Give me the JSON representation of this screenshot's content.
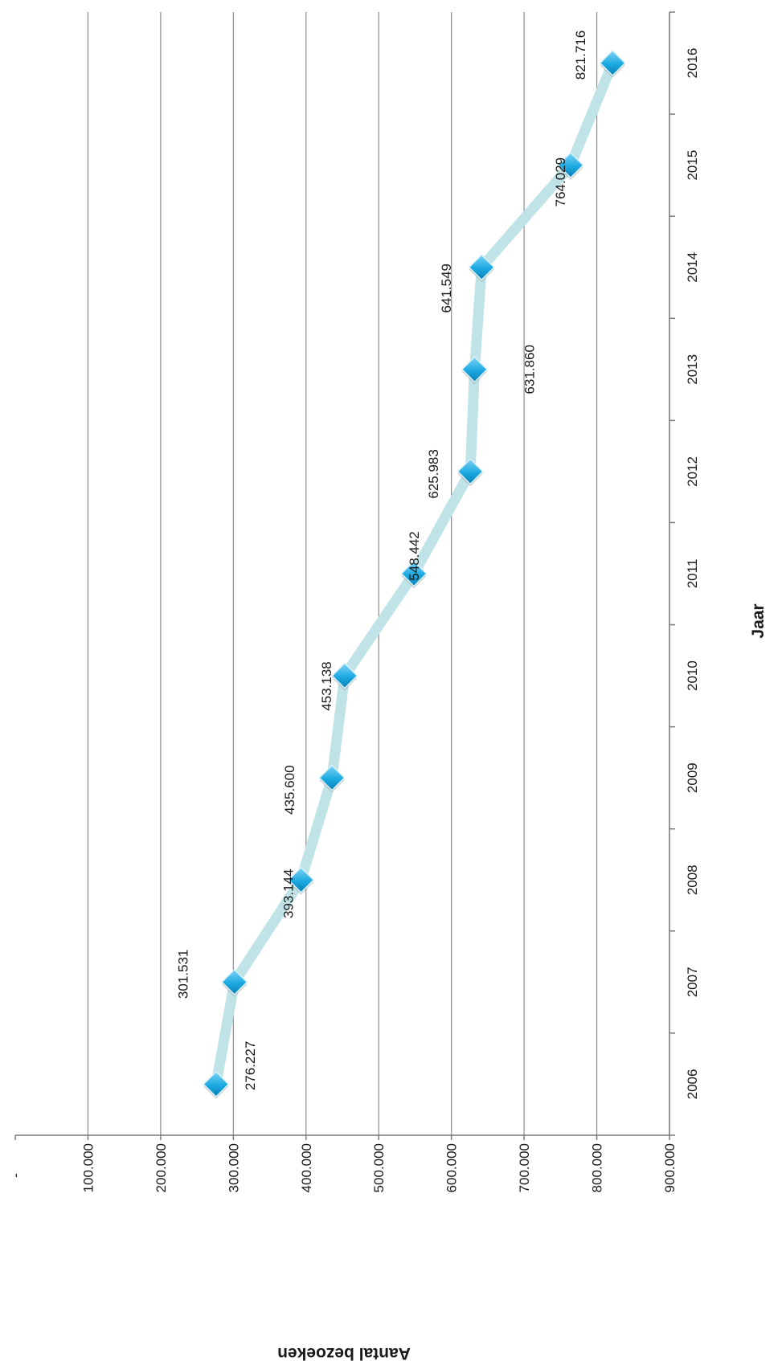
{
  "chart_data": {
    "type": "line",
    "title": "",
    "xlabel": "Jaar",
    "ylabel": "Aantal bezoeken",
    "categories": [
      "2006",
      "2007",
      "2008",
      "2009",
      "2010",
      "2011",
      "2012",
      "2013",
      "2014",
      "2015",
      "2016"
    ],
    "series": [
      {
        "values": [
          276227,
          301531,
          393144,
          435600,
          453138,
          548442,
          625983,
          631860,
          641549,
          764029,
          821716
        ],
        "labels": [
          "276.227",
          "301.531",
          "393.144",
          "435.600",
          "453.138",
          "548.442",
          "625.983",
          "631.860",
          "641.549",
          "764.029",
          "821.716"
        ]
      }
    ],
    "ylim": [
      0,
      900000
    ],
    "yticks": [
      0,
      100000,
      200000,
      300000,
      400000,
      500000,
      600000,
      700000,
      800000,
      900000
    ],
    "ytick_labels": [
      "-",
      "100.000",
      "200.000",
      "300.000",
      "400.000",
      "500.000",
      "600.000",
      "700.000",
      "800.000",
      "900.000"
    ],
    "grid": true,
    "orientation": "rotated-90-clockwise",
    "colors": {
      "line": "#bfe3e7",
      "marker": "#1ba9e1",
      "grid": "#8c8c8c",
      "axis": "#7a7a7a"
    }
  }
}
